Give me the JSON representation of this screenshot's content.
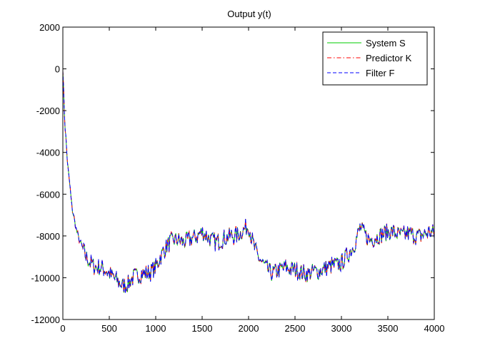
{
  "chart_data": {
    "type": "line",
    "title": "Output y(t)",
    "xlabel": "",
    "ylabel": "",
    "xlim": [
      0,
      4000
    ],
    "ylim": [
      -12000,
      2000
    ],
    "xticks": [
      0,
      500,
      1000,
      1500,
      2000,
      2500,
      3000,
      3500,
      4000
    ],
    "yticks": [
      -12000,
      -10000,
      -8000,
      -6000,
      -4000,
      -2000,
      0,
      2000
    ],
    "grid": false,
    "legend_position": "top-right",
    "series": [
      {
        "name": "System S",
        "color": "#00cc00",
        "style": "solid"
      },
      {
        "name": "Predictor K",
        "color": "#ff0000",
        "style": "dashdot"
      },
      {
        "name": "Filter F",
        "color": "#0000ff",
        "style": "dashed"
      }
    ],
    "x": [
      0,
      20,
      50,
      100,
      150,
      200,
      250,
      300,
      350,
      400,
      450,
      500,
      550,
      600,
      650,
      700,
      750,
      800,
      850,
      900,
      950,
      1000,
      1050,
      1100,
      1150,
      1200,
      1250,
      1300,
      1350,
      1400,
      1450,
      1500,
      1550,
      1600,
      1650,
      1700,
      1750,
      1800,
      1850,
      1900,
      1950,
      2000,
      2050,
      2100,
      2150,
      2200,
      2250,
      2300,
      2350,
      2400,
      2450,
      2500,
      2550,
      2600,
      2650,
      2700,
      2750,
      2800,
      2850,
      2900,
      2950,
      3000,
      3050,
      3100,
      3150,
      3200,
      3250,
      3300,
      3350,
      3400,
      3450,
      3500,
      3550,
      3600,
      3650,
      3700,
      3750,
      3800,
      3850,
      3900,
      3950,
      4000
    ],
    "y_trend": [
      0,
      -2500,
      -4500,
      -6700,
      -7800,
      -8500,
      -9000,
      -9300,
      -9500,
      -9500,
      -9600,
      -9800,
      -10000,
      -10200,
      -10400,
      -10300,
      -10000,
      -9900,
      -9800,
      -9800,
      -9700,
      -9500,
      -9000,
      -8600,
      -8300,
      -8200,
      -8200,
      -8300,
      -8200,
      -8100,
      -8000,
      -7800,
      -8000,
      -8200,
      -8300,
      -8200,
      -8100,
      -8000,
      -8000,
      -7900,
      -7700,
      -7500,
      -8400,
      -9000,
      -9300,
      -9600,
      -9800,
      -9700,
      -9600,
      -9500,
      -9600,
      -9600,
      -9700,
      -9800,
      -9800,
      -9700,
      -9700,
      -9600,
      -9500,
      -9400,
      -9400,
      -9300,
      -9000,
      -8700,
      -8300,
      -7600,
      -7900,
      -8200,
      -8100,
      -8000,
      -7900,
      -7800,
      -7800,
      -7900,
      -8000,
      -7900,
      -7900,
      -8000,
      -8000,
      -7900,
      -7800,
      -7900
    ]
  }
}
